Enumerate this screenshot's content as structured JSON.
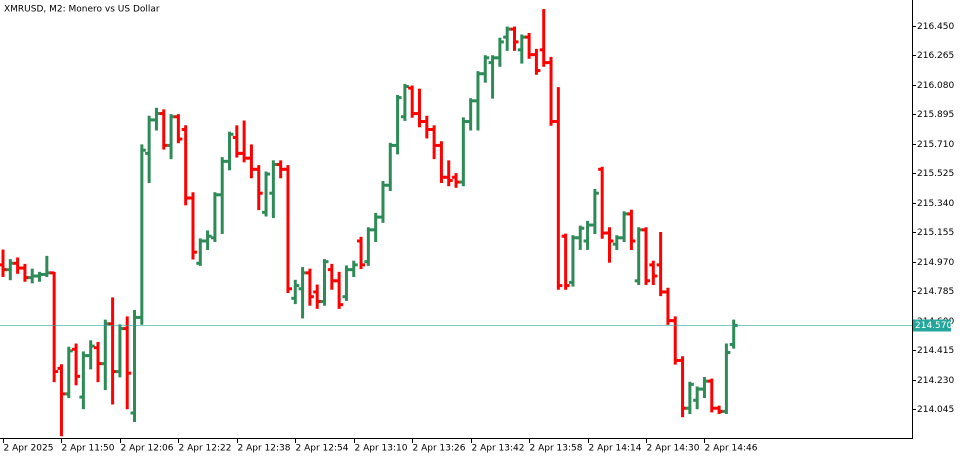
{
  "chart_data": {
    "type": "ohlc",
    "title": "XMRUSD, M2:  Monero vs US Dollar",
    "up_color": "#2e8b57",
    "down_color": "#ff0000",
    "last_color": "#26a69a",
    "last_price": 214.57,
    "last_price_label": "214.570",
    "xlim": [
      0,
      124.4
    ],
    "xticks": [
      {
        "value": 0,
        "label": "2 Apr 2025"
      },
      {
        "value": 8,
        "label": "2 Apr 11:50"
      },
      {
        "value": 16,
        "label": "2 Apr 12:06"
      },
      {
        "value": 24,
        "label": "2 Apr 12:22"
      },
      {
        "value": 32,
        "label": "2 Apr 12:38"
      },
      {
        "value": 40,
        "label": "2 Apr 12:54"
      },
      {
        "value": 48,
        "label": "2 Apr 13:10"
      },
      {
        "value": 56,
        "label": "2 Apr 13:26"
      },
      {
        "value": 64,
        "label": "2 Apr 13:42"
      },
      {
        "value": 72,
        "label": "2 Apr 13:58"
      },
      {
        "value": 80,
        "label": "2 Apr 14:14"
      },
      {
        "value": 88,
        "label": "2 Apr 14:30"
      },
      {
        "value": 96,
        "label": "2 Apr 14:46"
      }
    ],
    "ylim": [
      213.863,
      216.613
    ],
    "yticks": [
      214.045,
      {
        "value": 214.23,
        "label": "214.230"
      },
      214.415,
      {
        "value": 214.6,
        "label": "214.600"
      },
      214.785,
      {
        "value": 214.97,
        "label": "214.970"
      },
      215.155,
      {
        "value": 215.34,
        "label": "215.340"
      },
      215.525,
      {
        "value": 215.71,
        "label": "215.710"
      },
      215.895,
      {
        "value": 216.08,
        "label": "216.080"
      },
      216.265,
      {
        "value": 216.45,
        "label": "216.450"
      }
    ],
    "ohlc": [
      [
        214.95,
        215.04,
        214.88,
        214.92
      ],
      [
        214.92,
        214.98,
        214.86,
        214.96
      ],
      [
        214.96,
        214.99,
        214.9,
        214.93
      ],
      [
        214.93,
        214.95,
        214.85,
        214.87
      ],
      [
        214.87,
        214.92,
        214.84,
        214.88
      ],
      [
        214.88,
        214.9,
        214.85,
        214.89
      ],
      [
        214.89,
        215.0,
        214.88,
        214.9
      ],
      [
        214.9,
        214.9,
        214.22,
        214.28
      ],
      [
        214.3,
        214.32,
        213.88,
        214.14
      ],
      [
        214.14,
        214.43,
        214.12,
        214.41
      ],
      [
        214.42,
        214.45,
        214.2,
        214.25
      ],
      [
        214.12,
        214.4,
        214.05,
        214.38
      ],
      [
        214.38,
        214.47,
        214.3,
        214.44
      ],
      [
        214.43,
        214.46,
        214.22,
        214.33
      ],
      [
        214.33,
        214.6,
        214.17,
        214.58
      ],
      [
        214.58,
        214.74,
        214.08,
        214.28
      ],
      [
        214.28,
        214.57,
        214.25,
        214.55
      ],
      [
        214.55,
        214.62,
        214.05,
        214.27
      ],
      [
        214.02,
        214.66,
        213.97,
        214.62
      ],
      [
        214.62,
        215.7,
        214.58,
        215.67
      ],
      [
        215.65,
        215.88,
        215.47,
        215.86
      ],
      [
        215.86,
        215.93,
        215.8,
        215.9
      ],
      [
        215.9,
        215.92,
        215.68,
        215.7
      ],
      [
        215.7,
        215.89,
        215.62,
        215.88
      ],
      [
        215.88,
        215.89,
        215.72,
        215.74
      ],
      [
        215.8,
        215.82,
        215.33,
        215.37
      ],
      [
        215.37,
        215.4,
        214.99,
        215.03
      ],
      [
        214.96,
        215.11,
        214.95,
        215.1
      ],
      [
        215.1,
        215.16,
        215.05,
        215.13
      ],
      [
        215.12,
        215.4,
        215.1,
        215.39
      ],
      [
        215.39,
        215.62,
        215.15,
        215.6
      ],
      [
        215.6,
        215.78,
        215.55,
        215.77
      ],
      [
        215.75,
        215.82,
        215.63,
        215.65
      ],
      [
        215.65,
        215.85,
        215.6,
        215.62
      ],
      [
        215.62,
        215.7,
        215.5,
        215.55
      ],
      [
        215.55,
        215.57,
        215.3,
        215.4
      ],
      [
        215.28,
        215.53,
        215.26,
        215.52
      ],
      [
        215.4,
        215.6,
        215.25,
        215.58
      ],
      [
        215.58,
        215.6,
        215.5,
        215.55
      ],
      [
        215.55,
        215.57,
        214.78,
        214.8
      ],
      [
        214.74,
        214.85,
        214.71,
        214.82
      ],
      [
        214.8,
        214.93,
        214.62,
        214.9
      ],
      [
        214.9,
        214.92,
        214.7,
        214.75
      ],
      [
        214.78,
        214.82,
        214.68,
        214.72
      ],
      [
        214.72,
        214.98,
        214.7,
        214.97
      ],
      [
        214.92,
        214.95,
        214.8,
        214.85
      ],
      [
        214.85,
        214.9,
        214.68,
        214.7
      ],
      [
        214.75,
        214.94,
        214.73,
        214.92
      ],
      [
        214.92,
        214.97,
        214.88,
        214.95
      ],
      [
        215.1,
        215.12,
        214.93,
        214.95
      ],
      [
        214.97,
        215.18,
        214.95,
        215.17
      ],
      [
        215.17,
        215.27,
        215.1,
        215.25
      ],
      [
        215.25,
        215.47,
        215.22,
        215.45
      ],
      [
        215.45,
        215.71,
        215.42,
        215.7
      ],
      [
        215.7,
        216.01,
        215.65,
        216.0
      ],
      [
        215.88,
        216.08,
        215.86,
        216.07
      ],
      [
        216.06,
        216.07,
        215.88,
        215.9
      ],
      [
        215.9,
        216.05,
        215.82,
        215.85
      ],
      [
        215.85,
        215.88,
        215.75,
        215.8
      ],
      [
        215.8,
        215.82,
        215.62,
        215.7
      ],
      [
        215.7,
        215.72,
        215.47,
        215.5
      ],
      [
        215.5,
        215.6,
        215.45,
        215.48
      ],
      [
        215.5,
        215.52,
        215.44,
        215.47
      ],
      [
        215.47,
        215.87,
        215.45,
        215.85
      ],
      [
        215.85,
        215.99,
        215.8,
        215.98
      ],
      [
        215.98,
        216.16,
        215.8,
        216.15
      ],
      [
        216.15,
        216.26,
        216.1,
        216.25
      ],
      [
        216.22,
        216.26,
        216.0,
        216.25
      ],
      [
        216.25,
        216.37,
        216.2,
        216.35
      ],
      [
        216.38,
        216.44,
        216.3,
        216.43
      ],
      [
        216.43,
        216.44,
        216.3,
        216.35
      ],
      [
        216.3,
        216.39,
        216.22,
        216.38
      ],
      [
        216.38,
        216.4,
        216.25,
        216.27
      ],
      [
        216.27,
        216.3,
        216.15,
        216.17
      ],
      [
        216.3,
        216.55,
        216.2,
        216.22
      ],
      [
        216.22,
        216.25,
        215.83,
        215.85
      ],
      [
        215.85,
        216.06,
        214.8,
        214.82
      ],
      [
        215.13,
        215.14,
        214.8,
        214.82
      ],
      [
        214.84,
        215.13,
        214.82,
        215.12
      ],
      [
        215.12,
        215.19,
        215.05,
        215.18
      ],
      [
        215.1,
        215.22,
        215.05,
        215.2
      ],
      [
        215.2,
        215.42,
        215.15,
        215.4
      ],
      [
        215.55,
        215.56,
        215.12,
        215.15
      ],
      [
        215.15,
        215.18,
        214.97,
        215.1
      ],
      [
        215.08,
        215.13,
        215.05,
        215.12
      ],
      [
        215.12,
        215.28,
        215.1,
        215.27
      ],
      [
        215.27,
        215.29,
        215.05,
        215.1
      ],
      [
        214.85,
        215.18,
        214.83,
        215.17
      ],
      [
        215.17,
        215.18,
        214.83,
        214.85
      ],
      [
        214.95,
        214.97,
        214.83,
        214.88
      ],
      [
        214.95,
        215.15,
        214.76,
        214.78
      ],
      [
        214.78,
        214.8,
        214.58,
        214.6
      ],
      [
        214.6,
        214.62,
        214.33,
        214.35
      ],
      [
        214.35,
        214.37,
        214.0,
        214.05
      ],
      [
        214.05,
        214.21,
        214.02,
        214.2
      ],
      [
        214.1,
        214.18,
        214.05,
        214.17
      ],
      [
        214.17,
        214.24,
        214.12,
        214.22
      ],
      [
        214.22,
        214.23,
        214.03,
        214.05
      ],
      [
        214.05,
        214.06,
        214.02,
        214.03
      ],
      [
        214.03,
        214.45,
        214.02,
        214.4
      ],
      [
        214.45,
        214.6,
        214.43,
        214.57
      ]
    ]
  }
}
